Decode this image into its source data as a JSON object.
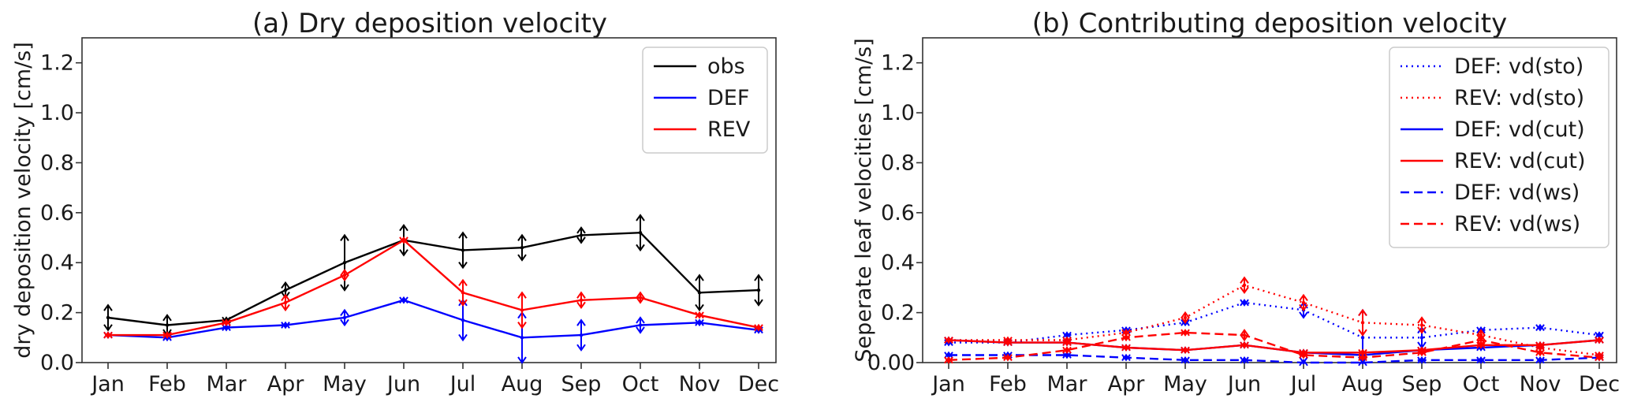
{
  "chart_data": [
    {
      "type": "line",
      "title": "(a) Dry deposition velocity",
      "xlabel": "",
      "ylabel": "dry deposition velocity [cm/s]",
      "categories": [
        "Jan",
        "Feb",
        "Mar",
        "Apr",
        "May",
        "Jun",
        "Jul",
        "Aug",
        "Sep",
        "Oct",
        "Nov",
        "Dec"
      ],
      "ylim": [
        0,
        1.3
      ],
      "yticks": [
        "0.0",
        "0.2",
        "0.4",
        "0.6",
        "0.8",
        "1.0",
        "1.2"
      ],
      "ytick_values": [
        0,
        0.2,
        0.4,
        0.6,
        0.8,
        1.0,
        1.2
      ],
      "grid": false,
      "legend_position": "top-right",
      "series": [
        {
          "name": "obs",
          "color": "#000000",
          "style": "solid",
          "values": [
            0.18,
            0.15,
            0.17,
            0.29,
            0.4,
            0.49,
            0.45,
            0.46,
            0.51,
            0.52,
            0.28,
            0.29
          ],
          "err": [
            0.05,
            0.04,
            0.01,
            0.03,
            0.11,
            0.06,
            0.07,
            0.05,
            0.03,
            0.07,
            0.07,
            0.06
          ]
        },
        {
          "name": "DEF",
          "color": "#0000ff",
          "style": "solid",
          "values": [
            0.11,
            0.1,
            0.14,
            0.15,
            0.18,
            0.25,
            0.17,
            0.1,
            0.11,
            0.15,
            0.16,
            0.13
          ],
          "err": [
            0.01,
            0.01,
            0.01,
            0.01,
            0.03,
            0.01,
            0.08,
            0.1,
            0.06,
            0.03,
            0.01,
            0.01
          ]
        },
        {
          "name": "REV",
          "color": "#ff0000",
          "style": "solid",
          "values": [
            0.11,
            0.11,
            0.16,
            0.24,
            0.35,
            0.49,
            0.28,
            0.21,
            0.25,
            0.26,
            0.19,
            0.14
          ],
          "err": [
            0.01,
            0.01,
            0.01,
            0.03,
            0.02,
            0.01,
            0.05,
            0.07,
            0.03,
            0.02,
            0.01,
            0.01
          ]
        }
      ]
    },
    {
      "type": "line",
      "title": "(b) Contributing deposition velocity",
      "xlabel": "",
      "ylabel": "Seperate leaf velocities [cm/s]",
      "categories": [
        "Jan",
        "Feb",
        "Mar",
        "Apr",
        "May",
        "Jun",
        "Jul",
        "Aug",
        "Sep",
        "Oct",
        "Nov",
        "Dec"
      ],
      "ylim": [
        0,
        1.3
      ],
      "yticks": [
        "0.00",
        "0.2",
        "0.4",
        "0.6",
        "0.8",
        "1.0",
        "1.2"
      ],
      "ytick_values": [
        0,
        0.2,
        0.4,
        0.6,
        0.8,
        1.0,
        1.2
      ],
      "grid": false,
      "legend_position": "top-right",
      "series": [
        {
          "name": "DEF: vd(sto)",
          "color": "#0000ff",
          "style": "dotted",
          "values": [
            0.08,
            0.08,
            0.11,
            0.13,
            0.16,
            0.24,
            0.21,
            0.1,
            0.1,
            0.13,
            0.14,
            0.11
          ],
          "err": [
            0.01,
            0.01,
            0.01,
            0.01,
            0.01,
            0.01,
            0.03,
            0.11,
            0.04,
            0.01,
            0.01,
            0.01
          ]
        },
        {
          "name": "REV: vd(sto)",
          "color": "#ff0000",
          "style": "dotted",
          "values": [
            0.09,
            0.09,
            0.09,
            0.12,
            0.18,
            0.31,
            0.24,
            0.16,
            0.15,
            0.11,
            0.06,
            0.03
          ],
          "err": [
            0.01,
            0.01,
            0.01,
            0.01,
            0.02,
            0.03,
            0.03,
            0.05,
            0.03,
            0.02,
            0.01,
            0.01
          ]
        },
        {
          "name": "DEF: vd(cut)",
          "color": "#0000ff",
          "style": "solid",
          "values": [
            0.09,
            0.08,
            0.08,
            0.06,
            0.05,
            0.07,
            0.04,
            0.03,
            0.05,
            0.06,
            0.07,
            0.09
          ],
          "err": [
            0.01,
            0.01,
            0.01,
            0.01,
            0.01,
            0.01,
            0.01,
            0.01,
            0.01,
            0.01,
            0.01,
            0.01
          ]
        },
        {
          "name": "REV: vd(cut)",
          "color": "#ff0000",
          "style": "solid",
          "values": [
            0.09,
            0.08,
            0.08,
            0.06,
            0.05,
            0.07,
            0.04,
            0.04,
            0.05,
            0.07,
            0.07,
            0.09
          ],
          "err": [
            0.01,
            0.01,
            0.01,
            0.01,
            0.01,
            0.01,
            0.01,
            0.01,
            0.01,
            0.01,
            0.01,
            0.01
          ]
        },
        {
          "name": "DEF: vd(ws)",
          "color": "#0000ff",
          "style": "dashed",
          "values": [
            0.03,
            0.03,
            0.03,
            0.02,
            0.01,
            0.01,
            0.0,
            0.0,
            0.01,
            0.01,
            0.01,
            0.02
          ],
          "err": [
            0.01,
            0.01,
            0.01,
            0.01,
            0.01,
            0.01,
            0.01,
            0.01,
            0.01,
            0.01,
            0.01,
            0.01
          ]
        },
        {
          "name": "REV: vd(ws)",
          "color": "#ff0000",
          "style": "dashed",
          "values": [
            0.01,
            0.02,
            0.05,
            0.1,
            0.12,
            0.11,
            0.03,
            0.02,
            0.04,
            0.09,
            0.04,
            0.02
          ],
          "err": [
            0.01,
            0.01,
            0.01,
            0.01,
            0.01,
            0.02,
            0.01,
            0.01,
            0.01,
            0.02,
            0.01,
            0.01
          ]
        }
      ]
    }
  ]
}
